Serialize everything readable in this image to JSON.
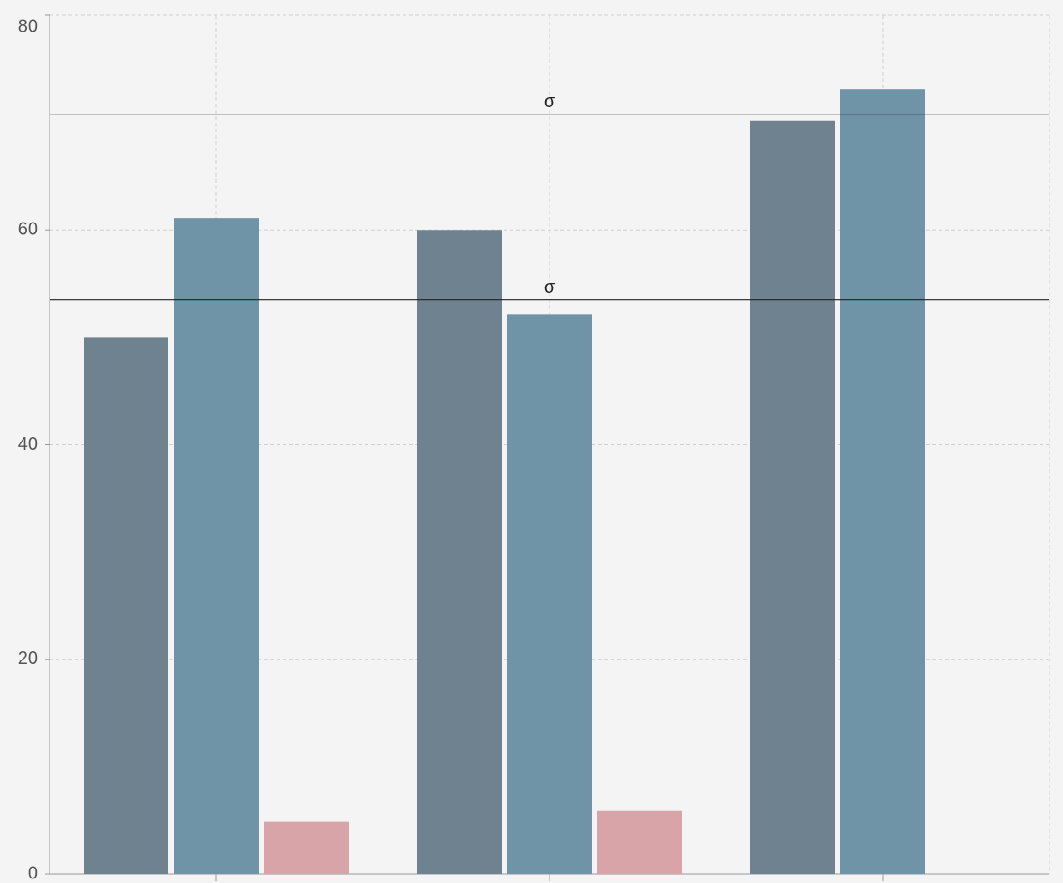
{
  "chart_data": {
    "type": "bar",
    "categories": [
      null,
      null,
      null
    ],
    "series": [
      {
        "color": "#6e828f",
        "values": [
          50,
          60,
          70.2
        ]
      },
      {
        "color": "#6f94a8",
        "values": [
          61.1,
          52.1,
          73.1
        ]
      },
      {
        "color": "#d9a4a8",
        "values": [
          4.9,
          5.9,
          null
        ]
      }
    ],
    "reference_lines": [
      {
        "value": 70.8,
        "label": "σ"
      },
      {
        "value": 53.5,
        "label": "σ"
      }
    ],
    "ylim": [
      0,
      80
    ],
    "yticks": [
      0,
      20,
      40,
      60,
      80
    ],
    "grid": true
  }
}
